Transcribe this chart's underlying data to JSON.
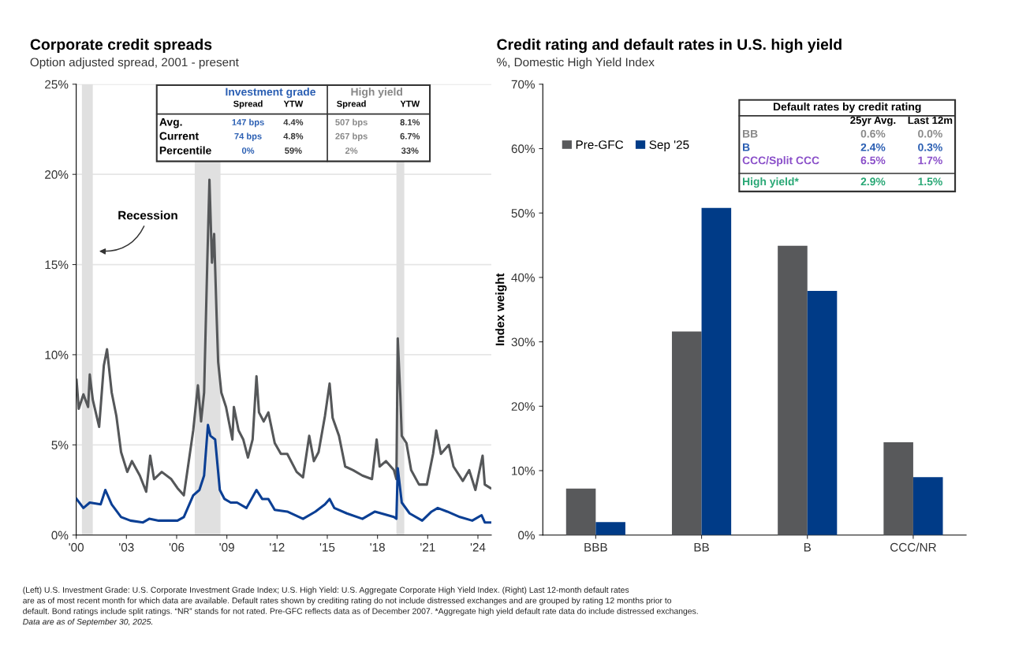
{
  "chart_data": [
    {
      "type": "line",
      "title": "Corporate credit spreads",
      "subtitle": "Option adjusted spread, 2001 - present",
      "xlim": [
        2000,
        2024.8
      ],
      "ylim": [
        0,
        25
      ],
      "xticks": [
        {
          "value": 2000,
          "label": "'00"
        },
        {
          "value": 2003,
          "label": "'03"
        },
        {
          "value": 2006,
          "label": "'06"
        },
        {
          "value": 2009,
          "label": "'09"
        },
        {
          "value": 2012,
          "label": "'12"
        },
        {
          "value": 2015,
          "label": "'15"
        },
        {
          "value": 2018,
          "label": "'18"
        },
        {
          "value": 2021,
          "label": "'21"
        },
        {
          "value": 2024,
          "label": "'24"
        }
      ],
      "yticks": [
        {
          "value": 0,
          "label": "0%"
        },
        {
          "value": 5,
          "label": "5%"
        },
        {
          "value": 10,
          "label": "10%"
        },
        {
          "value": 15,
          "label": "15%"
        },
        {
          "value": 20,
          "label": "20%"
        },
        {
          "value": 25,
          "label": "25%"
        }
      ],
      "grid": "y",
      "bands": [
        {
          "axis": "x",
          "from": 2000.34,
          "to": 2000.99,
          "color": "#e0e0e0"
        },
        {
          "axis": "x",
          "from": 2007.08,
          "to": 2008.62,
          "color": "#e0e0e0"
        },
        {
          "axis": "x",
          "from": 2019.13,
          "to": 2019.6,
          "color": "#e0e0e0"
        }
      ],
      "series": [
        {
          "color": "#555759",
          "x": [
            2000.02,
            2000.15,
            2000.43,
            2000.71,
            2000.81,
            2000.99,
            2001.37,
            2001.65,
            2001.84,
            2002.12,
            2002.4,
            2002.68,
            2003.05,
            2003.33,
            2003.8,
            2004.18,
            2004.42,
            2004.65,
            2005.11,
            2005.68,
            2006.05,
            2006.43,
            2006.71,
            2006.99,
            2007.27,
            2007.46,
            2007.64,
            2007.83,
            2007.96,
            2008.11,
            2008.24,
            2008.39,
            2008.48,
            2008.67,
            2008.95,
            2009.33,
            2009.42,
            2009.7,
            2009.98,
            2010.26,
            2010.54,
            2010.77,
            2010.92,
            2011.2,
            2011.48,
            2011.86,
            2012.23,
            2012.61,
            2013.17,
            2013.55,
            2013.92,
            2014.2,
            2014.48,
            2014.86,
            2015.14,
            2015.32,
            2015.7,
            2016.07,
            2016.54,
            2017.1,
            2017.67,
            2017.95,
            2018.13,
            2018.51,
            2018.98,
            2019.13,
            2019.21,
            2019.36,
            2019.45,
            2019.73,
            2020.01,
            2020.48,
            2020.95,
            2021.32,
            2021.51,
            2021.79,
            2022.26,
            2022.54,
            2023.1,
            2023.48,
            2023.85,
            2024.28,
            2024.41,
            2024.75
          ],
          "values": [
            8.6,
            7.0,
            7.8,
            7.1,
            8.9,
            7.5,
            6.0,
            9.4,
            10.3,
            7.9,
            6.6,
            4.6,
            3.5,
            4.1,
            3.3,
            2.4,
            4.4,
            3.1,
            3.5,
            3.1,
            2.6,
            2.2,
            4.0,
            5.8,
            8.3,
            6.3,
            7.9,
            15.1,
            19.7,
            15.1,
            16.7,
            12.1,
            9.6,
            7.9,
            7.1,
            5.3,
            7.1,
            5.8,
            5.3,
            4.3,
            5.3,
            8.8,
            6.8,
            6.3,
            6.8,
            5.1,
            4.5,
            4.5,
            3.5,
            3.2,
            5.5,
            4.1,
            4.6,
            6.6,
            8.4,
            6.5,
            5.5,
            3.8,
            3.6,
            3.3,
            3.1,
            5.3,
            3.8,
            4.1,
            3.6,
            3.1,
            10.9,
            7.8,
            5.5,
            5.1,
            3.6,
            2.8,
            2.8,
            4.5,
            5.8,
            4.5,
            5.0,
            3.8,
            3.0,
            3.6,
            2.5,
            4.4,
            2.8,
            2.6
          ]
        },
        {
          "color": "#0b3f94",
          "x": [
            2000.02,
            2000.43,
            2000.81,
            2001.46,
            2001.74,
            2002.12,
            2002.68,
            2003.24,
            2003.99,
            2004.36,
            2004.93,
            2006.05,
            2006.43,
            2006.99,
            2007.36,
            2007.64,
            2007.87,
            2008.02,
            2008.3,
            2008.58,
            2008.86,
            2009.23,
            2009.61,
            2010.17,
            2010.77,
            2011.11,
            2011.48,
            2011.86,
            2012.61,
            2013.55,
            2014.29,
            2014.86,
            2015.14,
            2015.42,
            2016.17,
            2017.1,
            2017.85,
            2018.23,
            2018.98,
            2019.13,
            2019.21,
            2019.45,
            2019.92,
            2020.67,
            2021.23,
            2021.6,
            2022.17,
            2022.92,
            2023.66,
            2024.22,
            2024.41,
            2024.75
          ],
          "values": [
            2.0,
            1.5,
            1.8,
            1.7,
            2.5,
            1.7,
            1.0,
            0.8,
            0.7,
            0.9,
            0.8,
            0.8,
            1.0,
            2.2,
            2.5,
            3.3,
            6.1,
            5.5,
            5.3,
            2.5,
            2.0,
            1.8,
            1.8,
            1.5,
            2.5,
            2.0,
            2.0,
            1.4,
            1.3,
            0.9,
            1.3,
            1.7,
            2.0,
            1.5,
            1.2,
            0.9,
            1.3,
            1.2,
            1.0,
            0.9,
            3.7,
            1.8,
            1.2,
            0.8,
            1.3,
            1.5,
            1.3,
            1.0,
            0.8,
            1.1,
            0.7,
            0.7
          ]
        }
      ],
      "annotations": [
        "Recession",
        "Investment grade",
        "High yield",
        "Spread",
        "YTW",
        "Spread",
        "YTW",
        "Avg.",
        "147 bps",
        "4.4%",
        "507 bps",
        "8.1%",
        "Current",
        "74 bps",
        "4.8%",
        "267 bps",
        "6.7%",
        "Percentile",
        "0%",
        "59%",
        "2%",
        "33%",
        "(Left) U.S. Investment Grade: U.S. Corporate Investment Grade Index; U.S. High Yield: U.S. Aggregate Corporate High Yield Index. (Right) Last 12-month default rates",
        "are as of most recent month for which data are available. Default rates shown by crediting rating do not include distressed exchanges and are grouped by rating 12 months prior to",
        "default. Bond ratings include split ratings. “NR” stands for not rated. Pre-GFC reflects data as of December 2007. *Aggregate high yield default rate data do include distressed exchanges.",
        "Data are as of September 30, 2025."
      ]
    },
    {
      "type": "bar",
      "title": "Credit rating and default rates in U.S. high yield",
      "subtitle": "%, Domestic High Yield Index",
      "ylabel": "Index weight",
      "categories": [
        "BBB",
        "BB",
        "B",
        "CCC/NR"
      ],
      "ylim": [
        0,
        70
      ],
      "yticks": [
        {
          "value": 0,
          "label": "0%"
        },
        {
          "value": 10,
          "label": "10%"
        },
        {
          "value": 20,
          "label": "20%"
        },
        {
          "value": 30,
          "label": "30%"
        },
        {
          "value": 40,
          "label": "40%"
        },
        {
          "value": 50,
          "label": "50%"
        },
        {
          "value": 60,
          "label": "60%"
        },
        {
          "value": 70,
          "label": "70%"
        }
      ],
      "legend": "top left",
      "series": [
        {
          "name": "Pre-GFC",
          "color": "#58595b",
          "values": [
            7.2,
            31.6,
            44.9,
            14.4
          ]
        },
        {
          "name": "Sep '25",
          "color": "#003b87",
          "values": [
            2.0,
            50.8,
            37.9,
            9.0
          ]
        }
      ],
      "annotations": [
        "Default rates by credit rating",
        "25yr Avg.",
        "Last 12m",
        "BB",
        "0.6%",
        "0.0%",
        "B",
        "2.4%",
        "0.3%",
        "CCC/Split CCC",
        "6.5%",
        "1.7%",
        "High yield*",
        "2.9%",
        "1.5%"
      ]
    }
  ]
}
